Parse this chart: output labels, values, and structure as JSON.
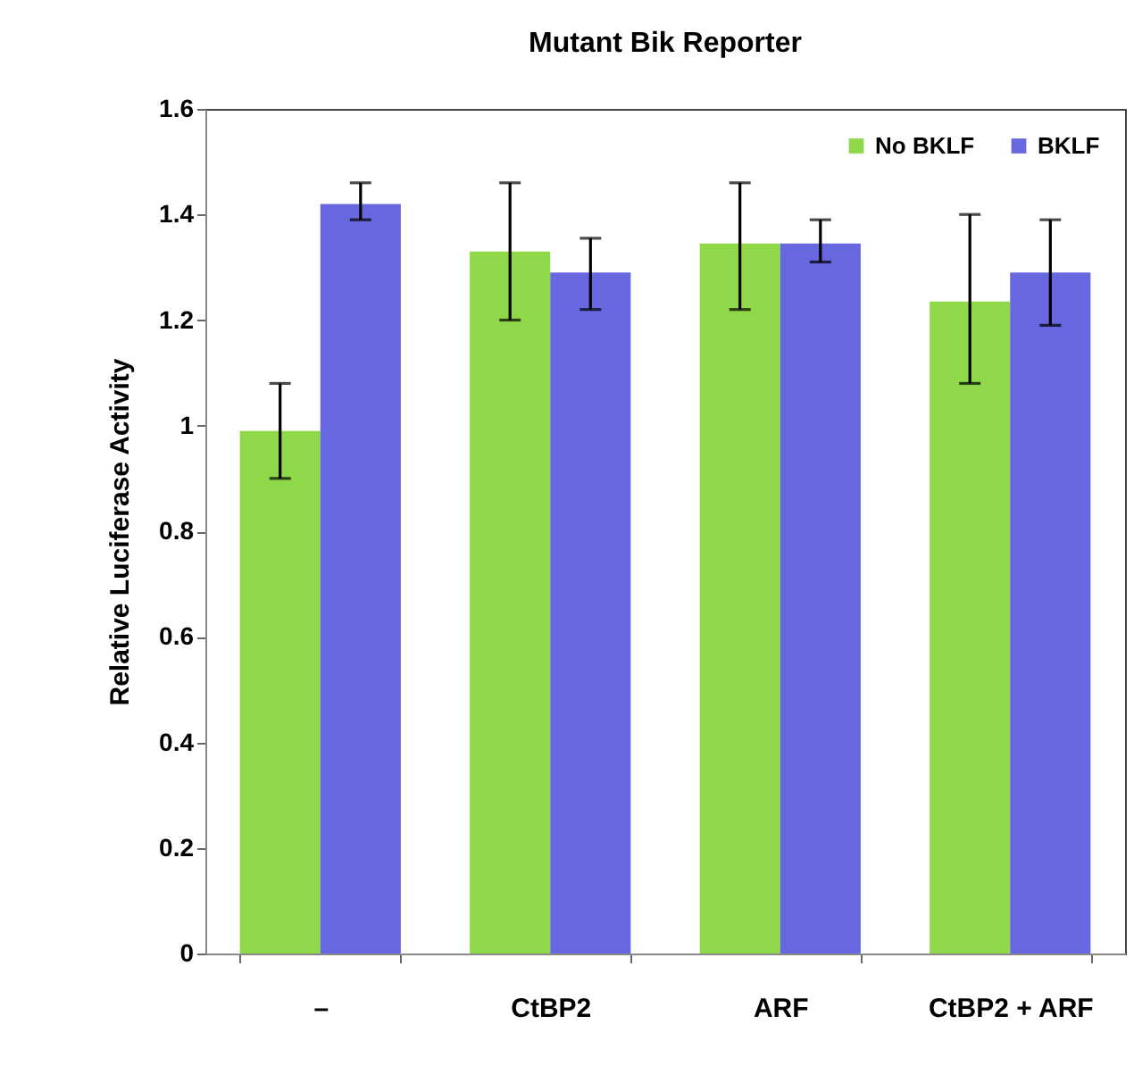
{
  "chart_data": {
    "type": "bar",
    "title": "Mutant Bik Reporter",
    "ylabel": "Relative Luciferase Activity",
    "categories": [
      "–",
      "CtBP2",
      "ARF",
      "CtBP2 + ARF"
    ],
    "series": [
      {
        "name": "No BKLF",
        "color": "#8fd84a",
        "values": [
          0.99,
          1.33,
          1.345,
          1.235
        ],
        "errors": [
          [
            0.9,
            1.08
          ],
          [
            1.2,
            1.46
          ],
          [
            1.22,
            1.46
          ],
          [
            1.08,
            1.4
          ]
        ]
      },
      {
        "name": "BKLF",
        "color": "#6767e0",
        "values": [
          1.42,
          1.29,
          1.345,
          1.29
        ],
        "errors": [
          [
            1.39,
            1.46
          ],
          [
            1.22,
            1.355
          ],
          [
            1.31,
            1.39
          ],
          [
            1.19,
            1.39
          ]
        ]
      }
    ],
    "ylim": [
      0,
      1.6
    ],
    "yticks": [
      0,
      0.2,
      0.4,
      0.6,
      0.8,
      1,
      1.2,
      1.4,
      1.6
    ],
    "grid": false,
    "legend": "top right"
  }
}
